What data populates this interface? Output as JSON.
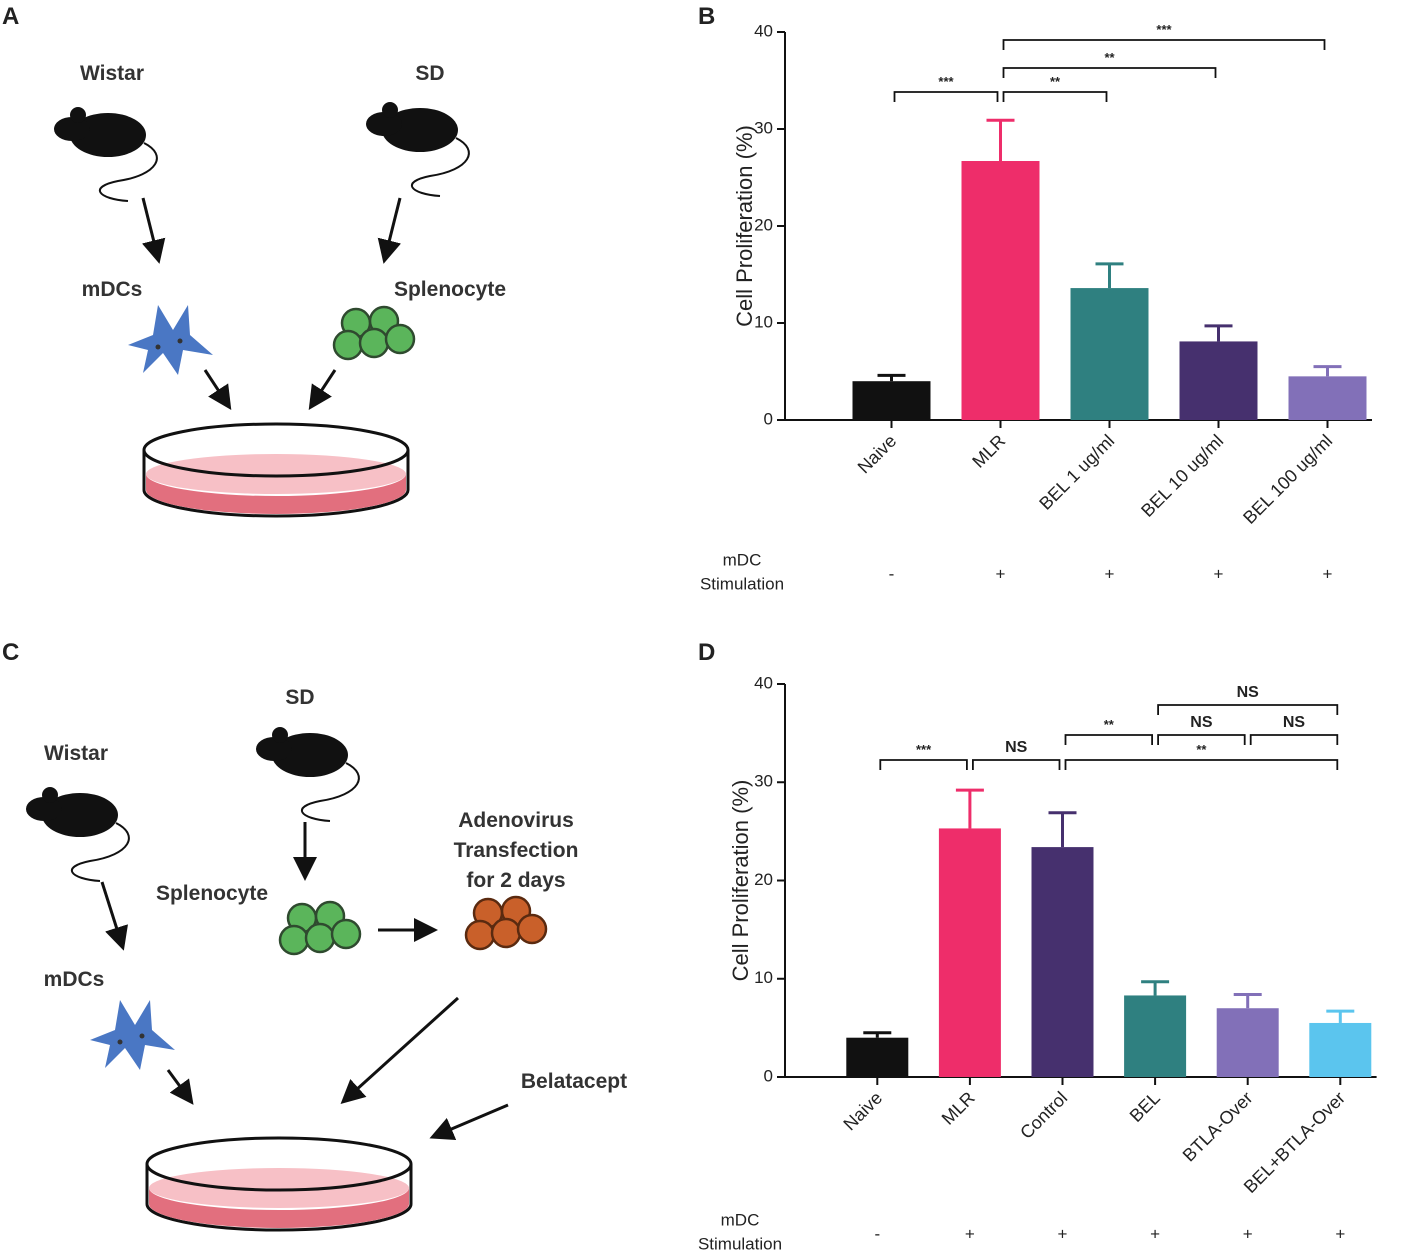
{
  "panel_labels": [
    "A",
    "B",
    "C",
    "D"
  ],
  "diagram_a": {
    "donor": "Wistar",
    "recipient": "SD",
    "dc_label": "mDCs",
    "cell_label": "Splenocyte"
  },
  "diagram_c": {
    "recipient": "SD",
    "donor": "Wistar",
    "cell_label": "Splenocyte",
    "transfection": [
      "Adenovirus",
      "Transfection",
      "for 2 days"
    ],
    "dc_label": "mDCs",
    "drug": "Belatacept"
  },
  "chart_data": [
    {
      "type": "bar",
      "y_label": "Cell Proliferation (%)",
      "categories": [
        "Naive",
        "MLR",
        "BEL 1 ug/ml",
        "BEL 10 ug/ml",
        "BEL 100 ug/ml"
      ],
      "values": [
        4,
        26.7,
        13.6,
        8.1,
        4.5
      ],
      "errors": [
        0.6,
        4.2,
        2.5,
        1.6,
        1.0
      ],
      "colors": [
        "#111111",
        "#ee2d6a",
        "#2f8080",
        "#46306e",
        "#8270b8"
      ],
      "ylim": [
        0,
        40
      ],
      "yticks": [
        0,
        10,
        20,
        30,
        40
      ],
      "row_label": [
        "mDC",
        "Stimulation"
      ],
      "row_values": [
        "-",
        "+",
        "+",
        "+",
        "+"
      ],
      "significance": [
        {
          "from": 0,
          "to": 1,
          "label": "***"
        },
        {
          "from": 1,
          "to": 2,
          "label": "**"
        },
        {
          "from": 1,
          "to": 3,
          "label": "**"
        },
        {
          "from": 1,
          "to": 4,
          "label": "***"
        }
      ]
    },
    {
      "type": "bar",
      "y_label": "Cell Proliferation (%)",
      "categories": [
        "Naive",
        "MLR",
        "Control",
        "BEL",
        "BTLA-Over",
        "BEL+BTLA-Over"
      ],
      "values": [
        4,
        25.3,
        23.4,
        8.3,
        7.0,
        5.5
      ],
      "errors": [
        0.5,
        3.9,
        3.5,
        1.4,
        1.4,
        1.2
      ],
      "colors": [
        "#111111",
        "#ee2d6a",
        "#46306e",
        "#2f8080",
        "#8270b8",
        "#5bc5ee"
      ],
      "ylim": [
        0,
        40
      ],
      "yticks": [
        0,
        10,
        20,
        30,
        40
      ],
      "row_label": [
        "mDC",
        "Stimulation"
      ],
      "row_values": [
        "-",
        "+",
        "+",
        "+",
        "+",
        "+"
      ],
      "significance": [
        {
          "from": 0,
          "to": 1,
          "label": "***"
        },
        {
          "from": 1,
          "to": 2,
          "label": "NS"
        },
        {
          "from": 2,
          "to": 3,
          "label": "**"
        },
        {
          "from": 3,
          "to": 4,
          "label": "NS"
        },
        {
          "from": 4,
          "to": 5,
          "label": "NS"
        },
        {
          "from": 3,
          "to": 5,
          "label": "NS"
        },
        {
          "from": 2,
          "to": 5,
          "label": "**"
        }
      ]
    }
  ]
}
